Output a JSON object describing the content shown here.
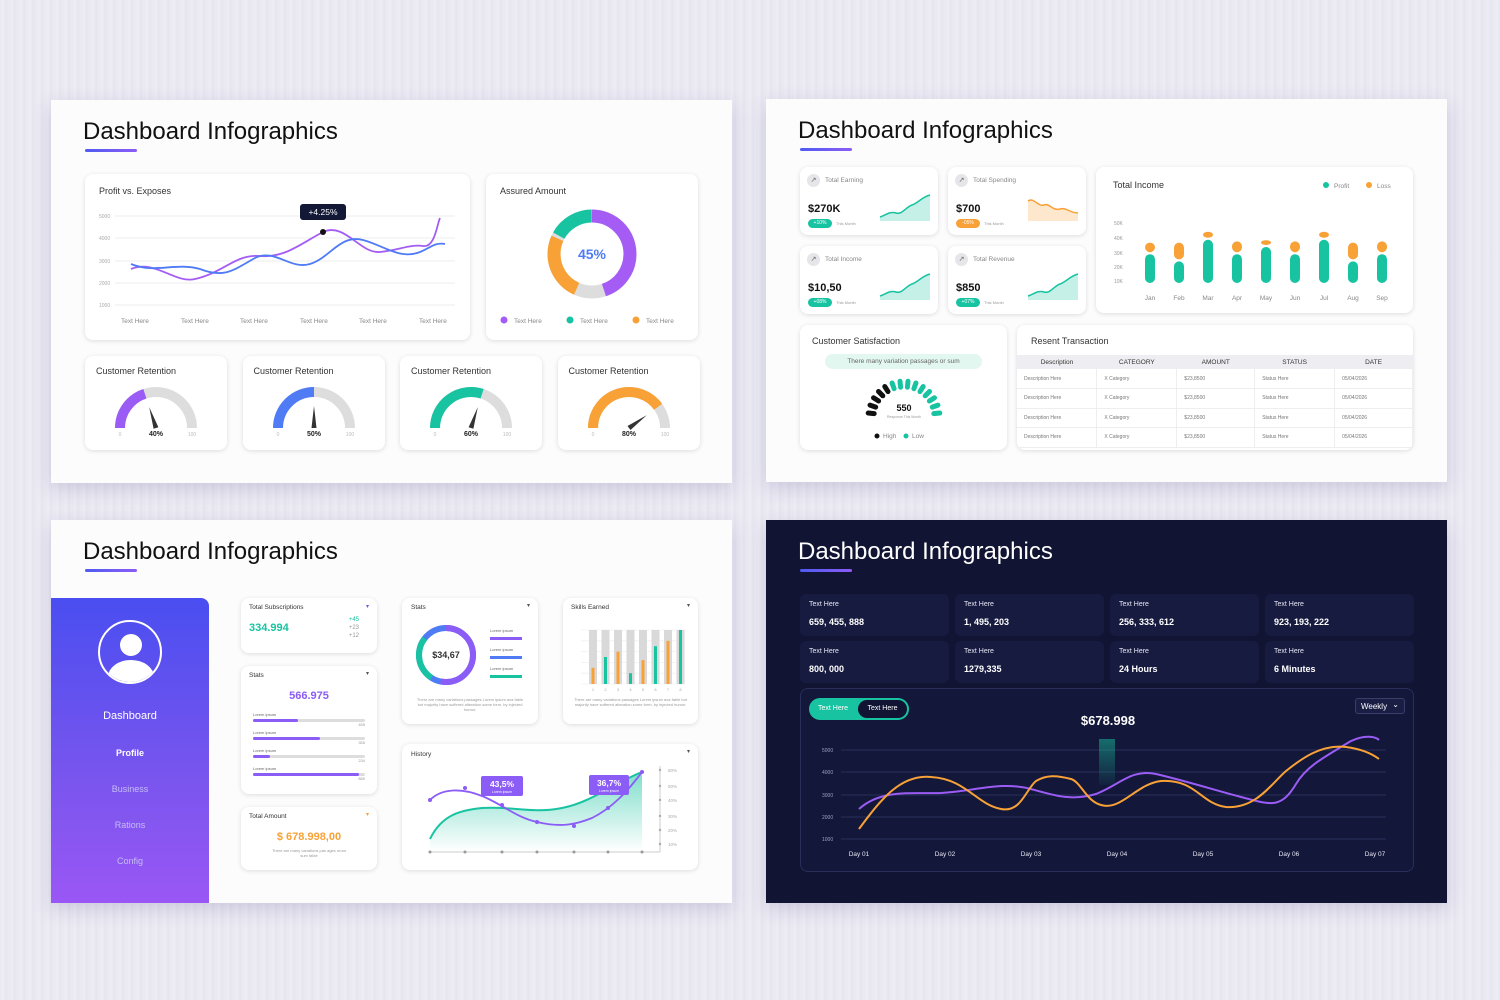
{
  "slide_title": "Dashboard Infographics",
  "colors": {
    "purple": "#9b5cf6",
    "blue": "#4f7bf5",
    "teal": "#17c3a0",
    "orange": "#f7a137",
    "dark": "#111433"
  },
  "s1": {
    "line_title": "Profit vs. Exposes",
    "badge": "+4.25%",
    "y_ticks": [
      "5000",
      "4000",
      "3000",
      "2000",
      "1000"
    ],
    "x_labels": [
      "Text Here",
      "Text Here",
      "Text Here",
      "Text Here",
      "Text Here",
      "Text Here"
    ],
    "donut_title": "Assured Amount",
    "donut_value": "45%",
    "donut_legend": [
      "Text Here",
      "Text Here",
      "Text Here"
    ],
    "gauges": [
      {
        "title": "Customer Retention",
        "value": "40%",
        "fraction": 0.4,
        "color": "#9b5cf6",
        "min": "0",
        "max": "100"
      },
      {
        "title": "Customer Retention",
        "value": "50%",
        "fraction": 0.5,
        "color": "#4f7bf5",
        "min": "0",
        "max": "100"
      },
      {
        "title": "Customer Retention",
        "value": "60%",
        "fraction": 0.6,
        "color": "#17c3a0",
        "min": "0",
        "max": "100"
      },
      {
        "title": "Customer Retention",
        "value": "80%",
        "fraction": 0.8,
        "color": "#f7a137",
        "min": "0",
        "max": "100"
      }
    ]
  },
  "s2": {
    "kpis": [
      {
        "label": "Total Earning",
        "value": "$270K",
        "badge": "+10%",
        "sub": "This Month",
        "badge_color": "#17c3a0",
        "spark": "teal"
      },
      {
        "label": "Total Spending",
        "value": "$700",
        "badge": "-05%",
        "sub": "This Month",
        "badge_color": "#f7a137",
        "spark": "orange"
      },
      {
        "label": "Total Income",
        "value": "$10,50",
        "badge": "+08%",
        "sub": "This Month",
        "badge_color": "#17c3a0",
        "spark": "teal"
      },
      {
        "label": "Total Revenue",
        "value": "$850",
        "badge": "+07%",
        "sub": "This Month",
        "badge_color": "#17c3a0",
        "spark": "teal"
      }
    ],
    "income_title": "Total Income",
    "legend_profit": "Profit",
    "legend_loss": "Loss",
    "income_y_ticks": [
      "50K",
      "40K",
      "30K",
      "20K",
      "10K"
    ],
    "satisfaction_title": "Customer Satisfaction",
    "satisfaction_pill": "There many variation passages or sum",
    "satisfaction_value": "550",
    "satisfaction_sub": "Response This Month",
    "legend_high": "High",
    "legend_low": "Low",
    "txn_title": "Resent Transaction",
    "txn_headers": [
      "Description",
      "CATEGORY",
      "AMOUNT",
      "STATUS",
      "DATE"
    ],
    "txn_rows": [
      [
        "Description Here",
        "X Category",
        "$23,8500",
        "Status Here",
        "05/04/2026"
      ],
      [
        "Description Here",
        "X Category",
        "$23,8500",
        "Status Here",
        "05/04/2026"
      ],
      [
        "Description Here",
        "X Category",
        "$23,8500",
        "Status Here",
        "05/04/2026"
      ],
      [
        "Description Here",
        "X Category",
        "$23,8500",
        "Status Here",
        "05/04/2026"
      ]
    ]
  },
  "s3": {
    "menu": [
      "Dashboard",
      "Profile",
      "Business",
      "Rations",
      "Config"
    ],
    "subs_title": "Total Subscriptions",
    "subs_value": "334.994",
    "subs_deltas": [
      "+45",
      "+23",
      "+12"
    ],
    "stats_title": "Stats",
    "stats_value": "566.975",
    "stats_rows": [
      {
        "label": "Lorem ipsum",
        "num": "455",
        "fraction": 0.4
      },
      {
        "label": "Lorem ipsum",
        "num": "355",
        "fraction": 0.6
      },
      {
        "label": "Lorem ipsum",
        "num": "234",
        "fraction": 0.15
      },
      {
        "label": "Lorem ipsum",
        "num": "889",
        "fraction": 0.95
      }
    ],
    "amount_title": "Total Amount",
    "amount_value": "$ 678.998,00",
    "amount_note": "There are many variations pas ages orum sum fable",
    "donut_title": "Stats",
    "donut_value": "$34,67",
    "donut_items": [
      "Lorem ipsum",
      "Lorem ipsum",
      "Lorem ipsum"
    ],
    "donut_note": "There are many variations passages Lorem ipsum ava fable but majority have suffered alteration some form, by injected humor.",
    "skills_title": "Skills Earned",
    "skills_note": "There are many variations passages Lorem ipsum ava fable but majority have suffered alteration some form, by injected humor.",
    "history_title": "History",
    "history_badge1": "43,5%",
    "history_badge2": "36,7%",
    "history_badge_sub": "Lorem ipsum",
    "history_y": [
      "60%",
      "50%",
      "40%",
      "30%",
      "20%",
      "10%"
    ]
  },
  "s4": {
    "stats": [
      {
        "label": "Text Here",
        "value": "659, 455, 888"
      },
      {
        "label": "Text Here",
        "value": "1, 495, 203"
      },
      {
        "label": "Text Here",
        "value": "256, 333, 612"
      },
      {
        "label": "Text Here",
        "value": "923, 193, 222"
      },
      {
        "label": "Text Here",
        "value": "800, 000"
      },
      {
        "label": "Text Here",
        "value": "1279,335"
      },
      {
        "label": "Text Here",
        "value": "24 Hours"
      },
      {
        "label": "Text Here",
        "value": "6 Minutes"
      }
    ],
    "toggle_a": "Text Here",
    "toggle_b": "Text Here",
    "total": "$678.998",
    "range_select": "Weekly",
    "y_ticks": [
      "5000",
      "4000",
      "3000",
      "2000",
      "1000"
    ],
    "x_labels": [
      "Day 01",
      "Day 02",
      "Day 03",
      "Day 04",
      "Day 05",
      "Day 06",
      "Day 07"
    ]
  },
  "chart_data": [
    {
      "type": "bar",
      "ylabel": "",
      "categories": [
        "Jan",
        "Feb",
        "Mar",
        "Apr",
        "May",
        "Jun",
        "Jul",
        "Aug",
        "Sep"
      ],
      "ylim": [
        0,
        50
      ],
      "series": [
        {
          "name": "Profit",
          "values": [
            24,
            18,
            36,
            24,
            30,
            24,
            36,
            18,
            24
          ]
        },
        {
          "name": "Loss",
          "values": [
            8,
            14,
            5,
            9,
            4,
            9,
            5,
            14,
            9
          ]
        }
      ]
    },
    {
      "type": "bar",
      "categories": [
        "1",
        "2",
        "3",
        "4",
        "5",
        "6",
        "7",
        "8"
      ],
      "series": [
        {
          "values": [
            1.5,
            2.5,
            3.0,
            1.0,
            2.2,
            3.5,
            4.0,
            5.0
          ]
        }
      ]
    }
  ]
}
